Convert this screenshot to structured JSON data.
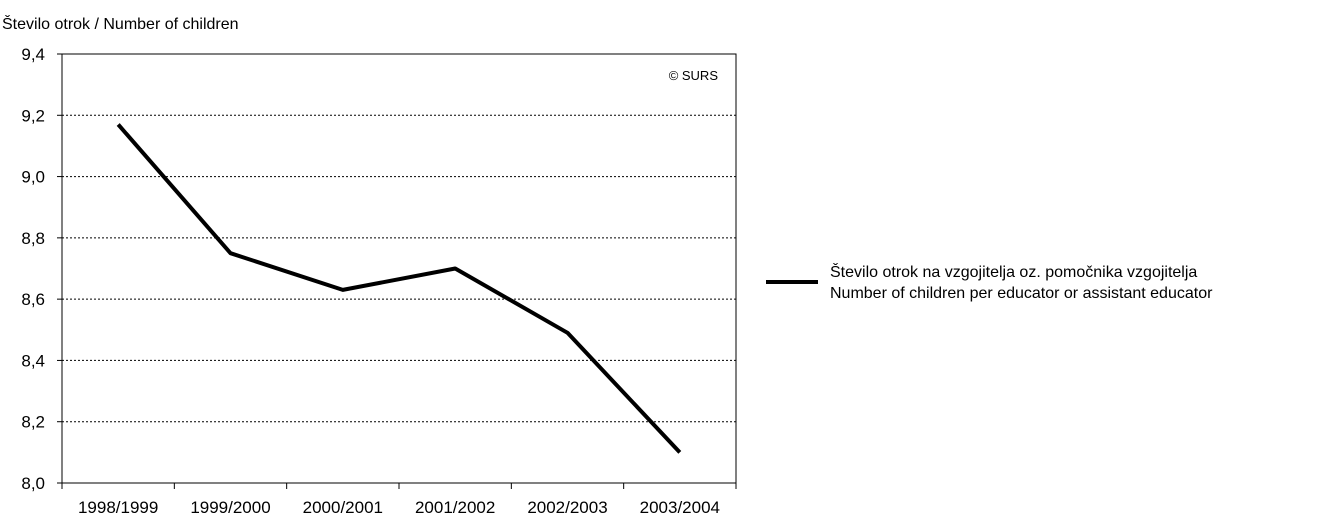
{
  "chart_data": {
    "type": "line",
    "title": "",
    "ylabel": "Število otrok / Number of children",
    "xlabel": "",
    "copyright": "© SURS",
    "categories": [
      "1998/1999",
      "1999/2000",
      "2000/2001",
      "2001/2002",
      "2002/2003",
      "2003/2004"
    ],
    "series": [
      {
        "name": "Število otrok na vzgojitelja oz. pomočnika vzgojitelja",
        "name_en": "Number of children per educator or assistant educator",
        "values": [
          9.17,
          8.75,
          8.63,
          8.7,
          8.49,
          8.1
        ],
        "color": "#000000"
      }
    ],
    "ylim": [
      8.0,
      9.4
    ],
    "yticks": [
      "8,0",
      "8,2",
      "8,4",
      "8,6",
      "8,8",
      "9,0",
      "9,2",
      "9,4"
    ],
    "grid": "horizontal-dotted",
    "legend_position": "right"
  }
}
